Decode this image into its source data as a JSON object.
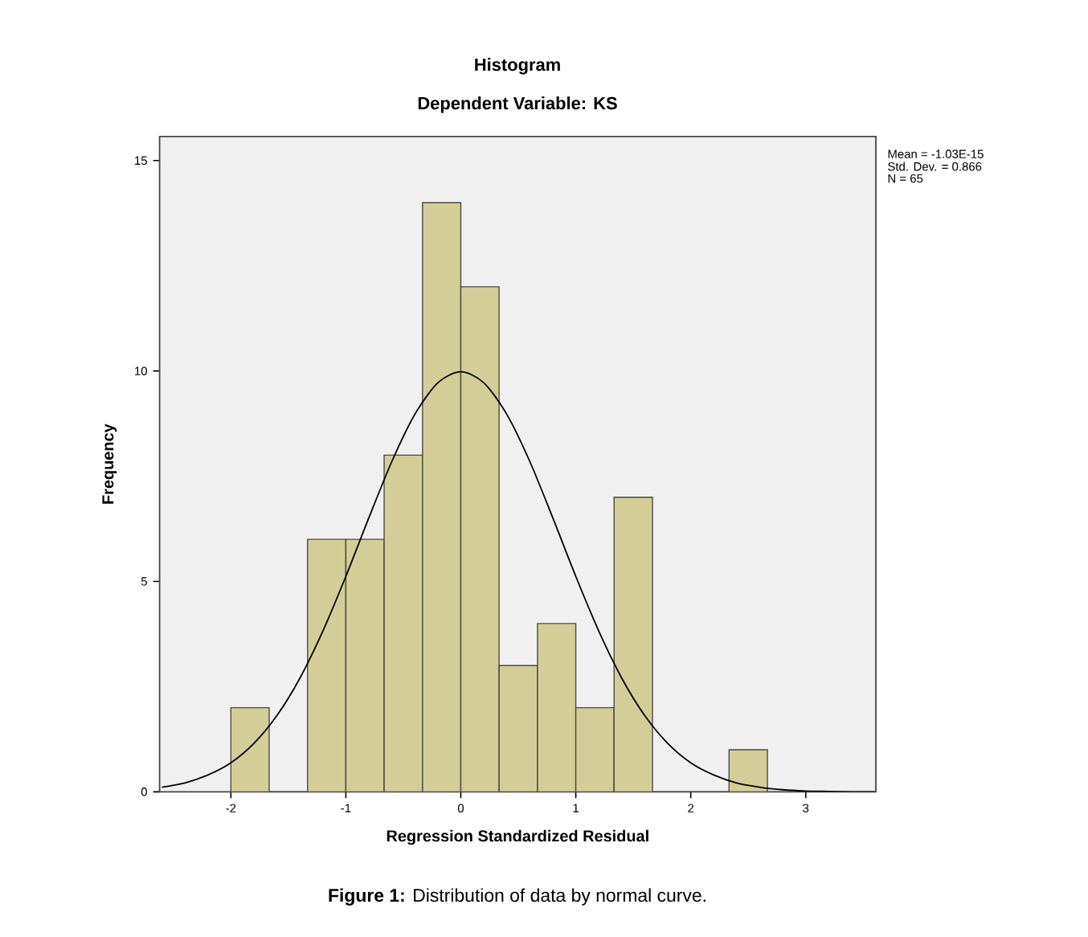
{
  "chart_data": {
    "type": "histogram",
    "title": "Histogram",
    "subtitle": "Dependent Variable: KS",
    "xlabel": "Regression Standardized Residual",
    "ylabel": "Frequency",
    "bins": [
      -2,
      -1.667,
      -1.333,
      -1,
      -0.667,
      -0.333,
      0,
      0.333,
      0.667,
      1,
      1.333,
      1.667,
      2,
      2.333,
      2.667
    ],
    "values": [
      2,
      0,
      6,
      6,
      8,
      14,
      12,
      3,
      4,
      2,
      7,
      0,
      0,
      1
    ],
    "color": "#d3ce98",
    "series": [
      {
        "type": "line",
        "color": "#000000",
        "x": [
          -2.6,
          -2.4,
          -2.2,
          -2.0,
          -1.8,
          -1.6,
          -1.4,
          -1.2,
          -1.0,
          -0.8,
          -0.6,
          -0.4,
          -0.2,
          0,
          0.2,
          0.4,
          0.6,
          0.8,
          1.0,
          1.2,
          1.4,
          1.6,
          1.8,
          2.0,
          2.2,
          2.4,
          2.6,
          2.8,
          3.0,
          3.2,
          3.4,
          3.6
        ],
        "values": [
          0.11,
          0.21,
          0.4,
          0.69,
          1.15,
          1.81,
          2.7,
          3.82,
          5.12,
          6.51,
          7.85,
          8.97,
          9.72,
          9.98,
          9.72,
          8.97,
          7.85,
          6.51,
          5.12,
          3.82,
          2.7,
          1.81,
          1.15,
          0.69,
          0.4,
          0.21,
          0.11,
          0.05,
          0.02,
          0.01,
          0,
          0
        ]
      }
    ],
    "xlim": [
      -2.62,
      3.61
    ],
    "ylim": [
      0,
      15.57
    ],
    "xticks": [
      -2,
      -1,
      0,
      1,
      2,
      3
    ],
    "yticks": [
      0,
      5,
      10,
      15
    ],
    "annotations": [
      "Mean = -1.03E-15",
      "Std. Dev. = 0.866",
      "N = 65",
      "**Figure 1:** Distribution of data by normal curve."
    ]
  }
}
